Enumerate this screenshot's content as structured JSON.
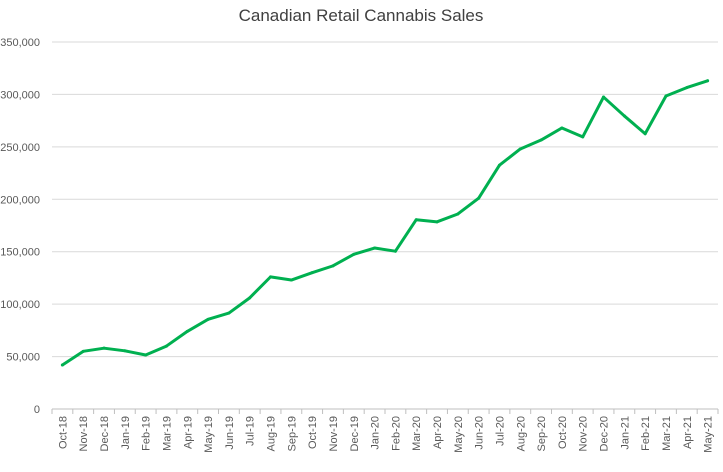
{
  "chart_data": {
    "type": "line",
    "title": "Canadian Retail Cannabis Sales",
    "xlabel": "",
    "ylabel": "",
    "ylim": [
      0,
      350000
    ],
    "yticks": [
      0,
      50000,
      100000,
      150000,
      200000,
      250000,
      300000,
      350000
    ],
    "ytick_labels": [
      "0",
      "50,000",
      "100,000",
      "150,000",
      "200,000",
      "250,000",
      "300,000",
      "350,000"
    ],
    "grid": true,
    "line_color": "#00B050",
    "categories": [
      "Oct-18",
      "Nov-18",
      "Dec-18",
      "Jan-19",
      "Feb-19",
      "Mar-19",
      "Apr-19",
      "May-19",
      "Jun-19",
      "Jul-19",
      "Aug-19",
      "Sep-19",
      "Oct-19",
      "Nov-19",
      "Dec-19",
      "Jan-20",
      "Feb-20",
      "Mar-20",
      "Apr-20",
      "May-20",
      "Jun-20",
      "Jul-20",
      "Aug-20",
      "Sep-20",
      "Oct-20",
      "Nov-20",
      "Dec-20",
      "Jan-21",
      "Feb-21",
      "Mar-21",
      "Apr-21",
      "May-21"
    ],
    "series": [
      {
        "name": "Sales",
        "values": [
          42000,
          55000,
          58000,
          55500,
          51500,
          60000,
          74000,
          85500,
          91500,
          106000,
          126000,
          123000,
          130000,
          136500,
          147500,
          153500,
          150500,
          180500,
          178500,
          186000,
          201000,
          232500,
          248000,
          256500,
          268000,
          259500,
          297500,
          279500,
          262500,
          298500,
          306500,
          313000
        ]
      }
    ]
  }
}
